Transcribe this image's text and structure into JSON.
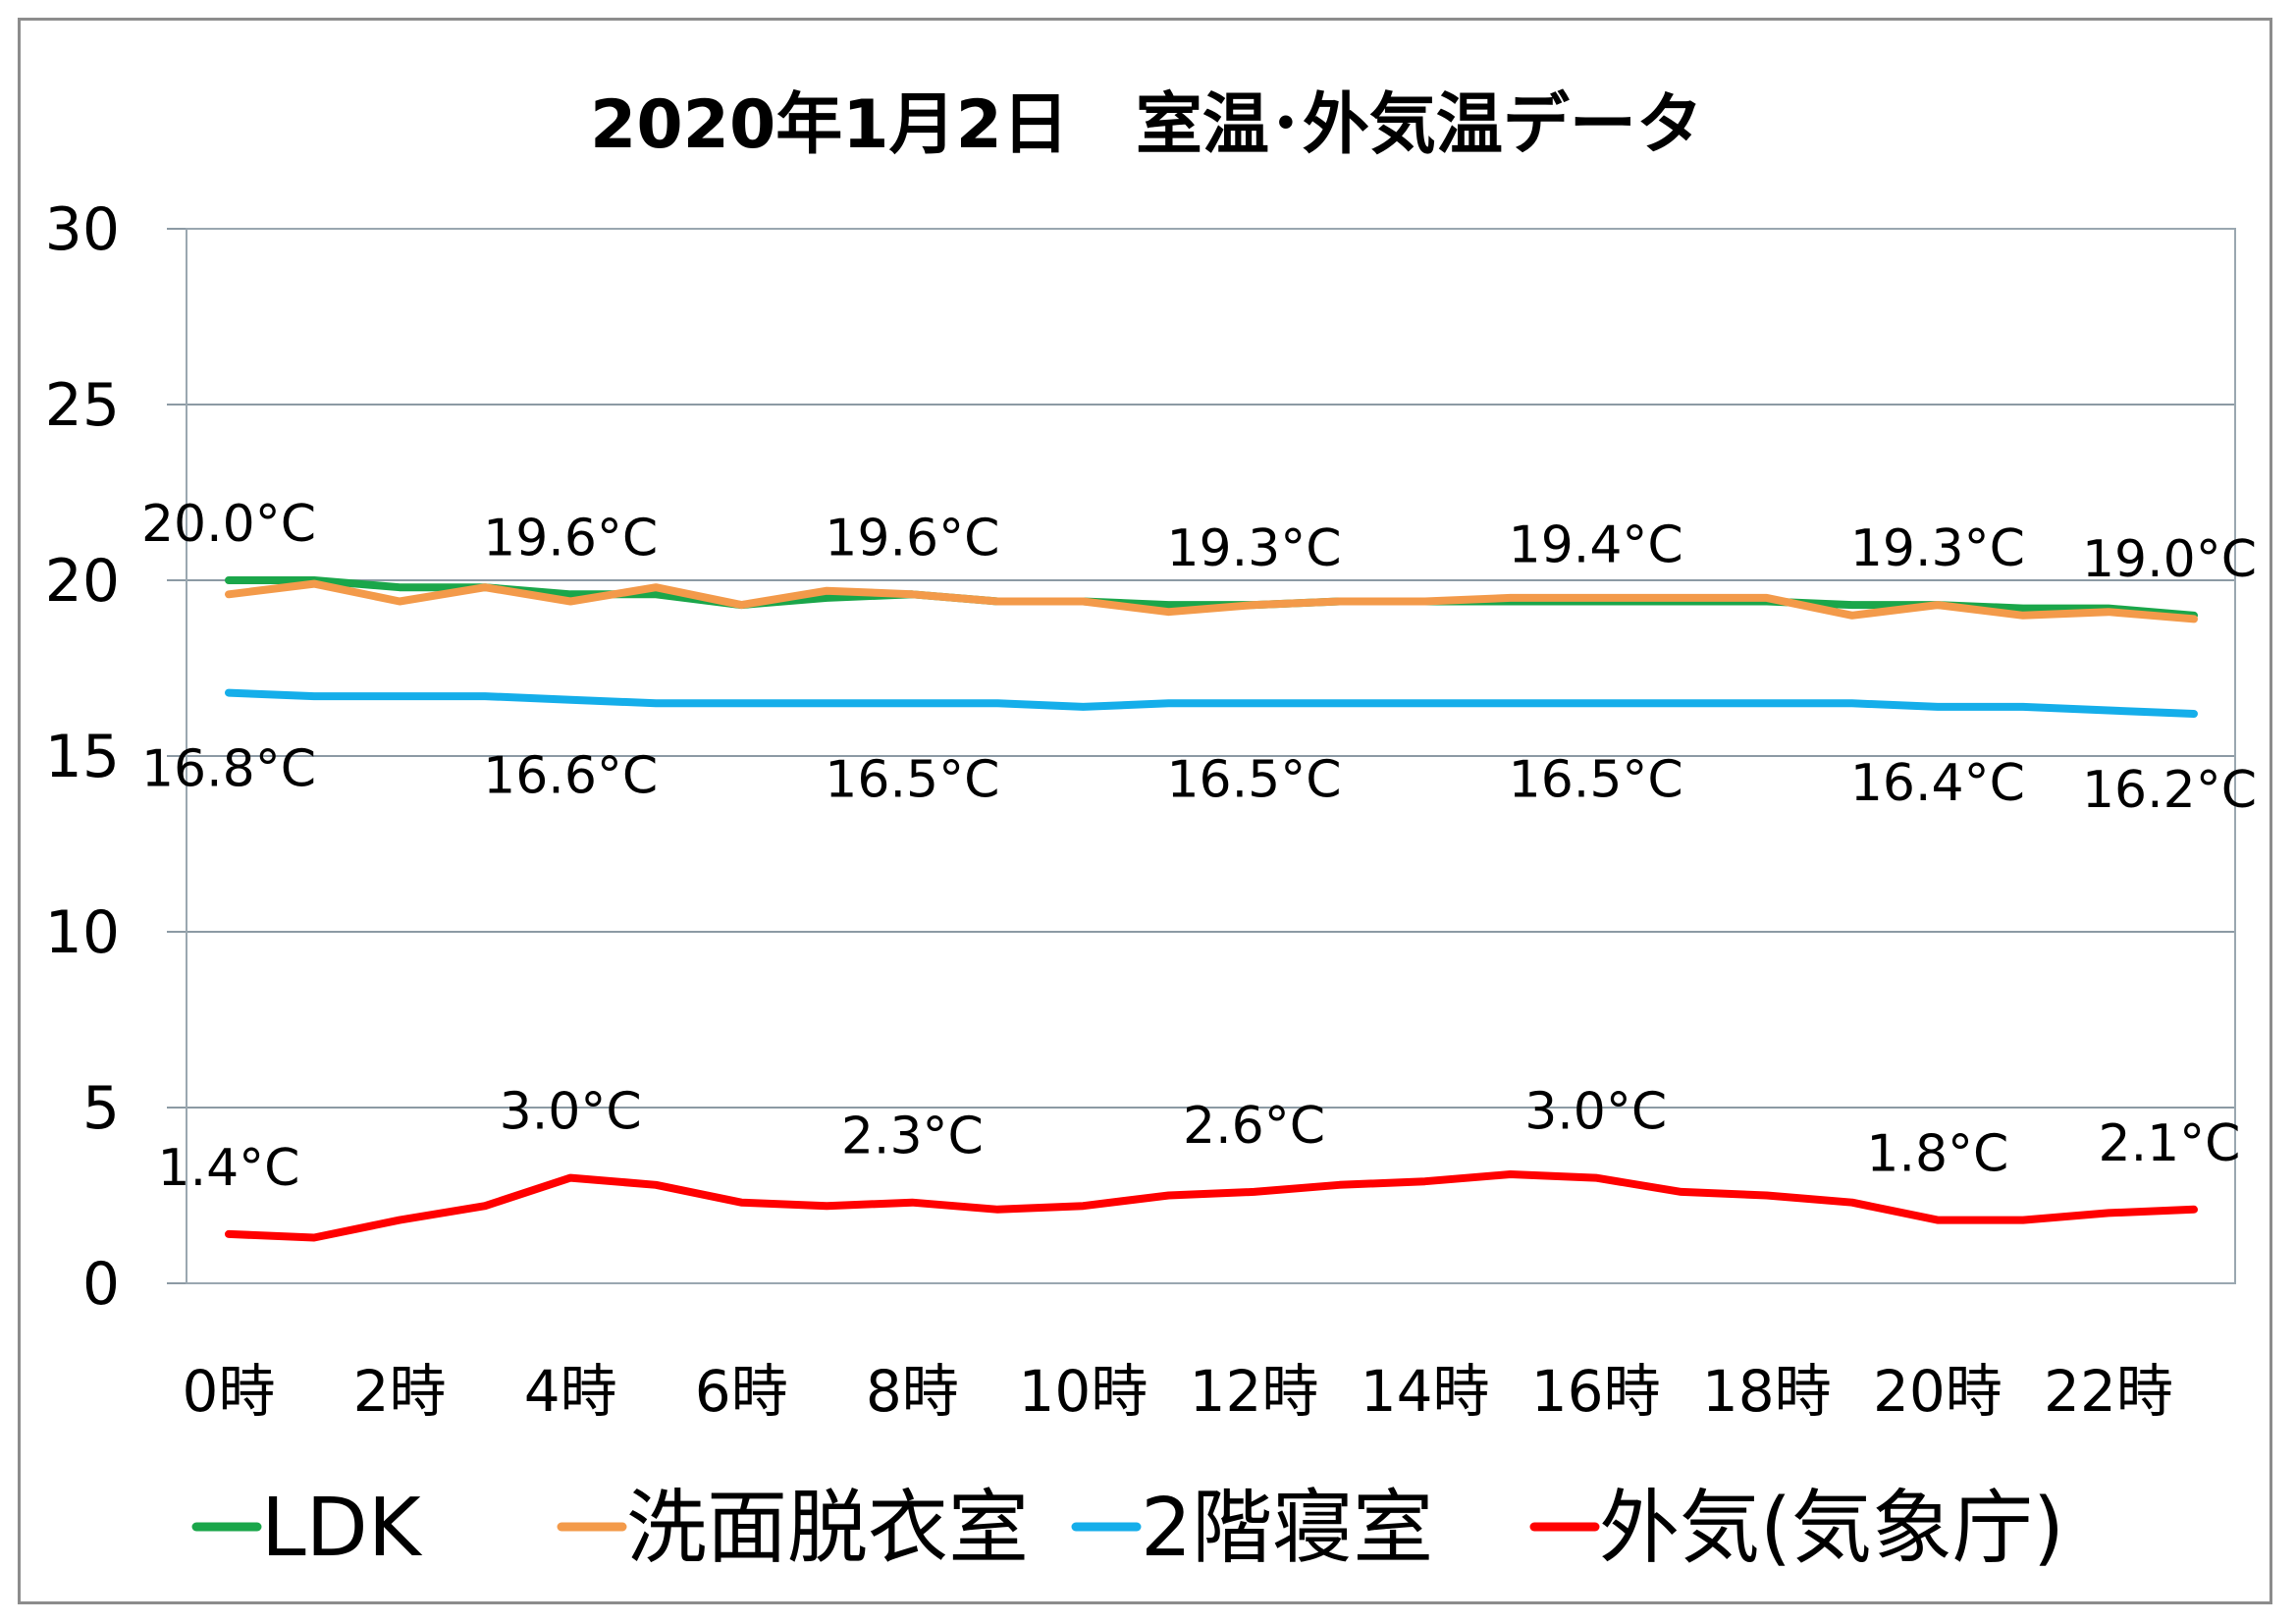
{
  "chart_data": {
    "type": "line",
    "title": "2020年1月2日　室温･外気温データ",
    "ylim": [
      0,
      30
    ],
    "yticks": [
      "0",
      "5",
      "10",
      "15",
      "20",
      "25",
      "30"
    ],
    "x": [
      "0時",
      "1時",
      "2時",
      "3時",
      "4時",
      "5時",
      "6時",
      "7時",
      "8時",
      "9時",
      "10時",
      "11時",
      "12時",
      "13時",
      "14時",
      "15時",
      "16時",
      "17時",
      "18時",
      "19時",
      "20時",
      "21時",
      "22時",
      "23時"
    ],
    "xtick_labels": [
      "0時",
      "2時",
      "4時",
      "6時",
      "8時",
      "10時",
      "12時",
      "14時",
      "16時",
      "18時",
      "20時",
      "22時"
    ],
    "grid": true,
    "legend": "bottom",
    "series": [
      {
        "name": "LDK",
        "color": "#1aa64a",
        "values": [
          20.0,
          20.0,
          19.8,
          19.8,
          19.6,
          19.6,
          19.3,
          19.5,
          19.6,
          19.4,
          19.4,
          19.3,
          19.3,
          19.4,
          19.4,
          19.4,
          19.4,
          19.4,
          19.4,
          19.3,
          19.3,
          19.2,
          19.2,
          19.0
        ]
      },
      {
        "name": "洗面脱衣室",
        "color": "#f39a4a",
        "values": [
          19.6,
          19.9,
          19.4,
          19.8,
          19.4,
          19.8,
          19.3,
          19.7,
          19.6,
          19.4,
          19.4,
          19.1,
          19.3,
          19.4,
          19.4,
          19.5,
          19.5,
          19.5,
          19.5,
          19.0,
          19.3,
          19.0,
          19.1,
          18.9
        ]
      },
      {
        "name": "2階寝室",
        "color": "#15aeea",
        "values": [
          16.8,
          16.7,
          16.7,
          16.7,
          16.6,
          16.5,
          16.5,
          16.5,
          16.5,
          16.5,
          16.4,
          16.5,
          16.5,
          16.5,
          16.5,
          16.5,
          16.5,
          16.5,
          16.5,
          16.5,
          16.4,
          16.4,
          16.3,
          16.2
        ]
      },
      {
        "name": "外気(気象庁)",
        "color": "#ff0000",
        "values": [
          1.4,
          1.3,
          1.8,
          2.2,
          3.0,
          2.8,
          2.3,
          2.2,
          2.3,
          2.1,
          2.2,
          2.5,
          2.6,
          2.8,
          2.9,
          3.1,
          3.0,
          2.6,
          2.5,
          2.3,
          1.8,
          1.8,
          2.0,
          2.1
        ]
      }
    ],
    "data_labels": [
      {
        "series": 0,
        "index": 0,
        "text": "20.0°C"
      },
      {
        "series": 0,
        "index": 4,
        "text": "19.6°C"
      },
      {
        "series": 0,
        "index": 8,
        "text": "19.6°C"
      },
      {
        "series": 0,
        "index": 12,
        "text": "19.3°C"
      },
      {
        "series": 0,
        "index": 16,
        "text": "19.4°C"
      },
      {
        "series": 0,
        "index": 20,
        "text": "19.3°C"
      },
      {
        "series": 0,
        "index": 23,
        "text": "19.0°C"
      },
      {
        "series": 2,
        "index": 0,
        "text": "16.8°C"
      },
      {
        "series": 2,
        "index": 4,
        "text": "16.6°C"
      },
      {
        "series": 2,
        "index": 8,
        "text": "16.5°C"
      },
      {
        "series": 2,
        "index": 12,
        "text": "16.5°C"
      },
      {
        "series": 2,
        "index": 16,
        "text": "16.5°C"
      },
      {
        "series": 2,
        "index": 20,
        "text": "16.4°C"
      },
      {
        "series": 2,
        "index": 23,
        "text": "16.2°C"
      },
      {
        "series": 3,
        "index": 0,
        "text": "1.4°C"
      },
      {
        "series": 3,
        "index": 4,
        "text": "3.0°C"
      },
      {
        "series": 3,
        "index": 8,
        "text": "2.3°C"
      },
      {
        "series": 3,
        "index": 12,
        "text": "2.6°C"
      },
      {
        "series": 3,
        "index": 16,
        "text": "3.0°C"
      },
      {
        "series": 3,
        "index": 20,
        "text": "1.8°C"
      },
      {
        "series": 3,
        "index": 23,
        "text": "2.1°C"
      }
    ]
  }
}
